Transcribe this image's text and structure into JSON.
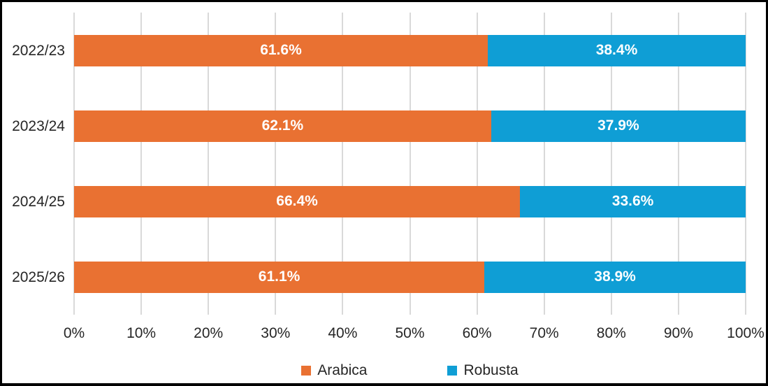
{
  "chart_data": {
    "type": "bar",
    "subtype": "stacked-horizontal",
    "title": "",
    "categories": [
      "2022/23",
      "2023/24",
      "2024/25",
      "2025/26"
    ],
    "series": [
      {
        "name": "Arabica",
        "color": "#E97132",
        "values": [
          61.6,
          62.1,
          66.4,
          61.1
        ],
        "labels": [
          "61.6%",
          "62.1%",
          "66.4%",
          "61.1%"
        ]
      },
      {
        "name": "Robusta",
        "color": "#0F9ED5",
        "values": [
          38.4,
          37.9,
          33.6,
          38.9
        ],
        "labels": [
          "38.4%",
          "37.9%",
          "33.6%",
          "38.9%"
        ]
      }
    ],
    "x_ticks": [
      "0%",
      "10%",
      "20%",
      "30%",
      "40%",
      "50%",
      "60%",
      "70%",
      "80%",
      "90%",
      "100%"
    ],
    "xlim": [
      0,
      100
    ],
    "grid": true,
    "legend_position": "bottom",
    "legend": [
      "Arabica",
      "Robusta"
    ],
    "style": {
      "grid_color": "#D9D9D9",
      "axis_text_color": "#262626",
      "data_label_color": "#FFFFFF",
      "frame_border_color": "#000000",
      "background": "#FFFFFF"
    }
  }
}
